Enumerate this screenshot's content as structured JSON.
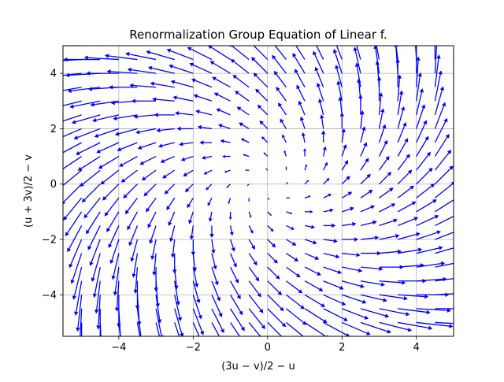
{
  "chart_data": {
    "type": "quiver",
    "title": "Renormalization Group Equation of Linear f.",
    "xlabel": "(3u − v)/2 − u",
    "ylabel": "(u + 3v)/2 − v",
    "xlim": [
      -5.5,
      5.0
    ],
    "ylim": [
      -5.5,
      5.0
    ],
    "xticks": [
      -4,
      -2,
      0,
      2,
      4
    ],
    "yticks": [
      -4,
      -2,
      0,
      2,
      4
    ],
    "xtick_labels": [
      "−4",
      "−2",
      "0",
      "2",
      "4"
    ],
    "ytick_labels": [
      "−4",
      "−2",
      "0",
      "2",
      "4"
    ],
    "grid": true,
    "arrow_color": "#0000ff",
    "field": {
      "u_range": [
        -5.0,
        5.0
      ],
      "v_range": [
        -5.0,
        5.0
      ],
      "n": 21,
      "du": "(3u - v)/2 - u",
      "dv": "(u + 3v)/2 - v"
    }
  }
}
